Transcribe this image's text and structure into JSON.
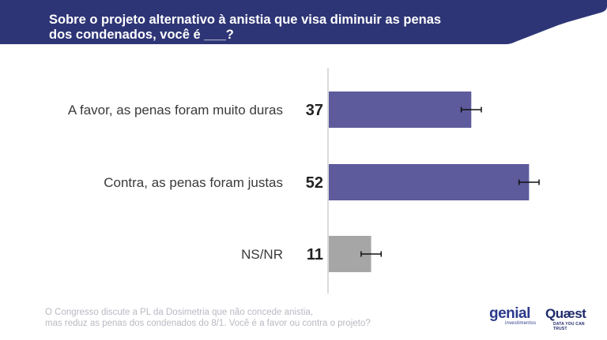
{
  "header": {
    "title_line1": "Sobre o projeto alternativo à anistia que visa diminuir as penas",
    "title_line2": "dos condenados, você é ___?"
  },
  "colors": {
    "header_band": "#2e3576",
    "bar_primary": "#5d5b9c",
    "bar_neutral": "#a6a6a6",
    "axis_line": "#cfcfcf"
  },
  "chart_data": {
    "type": "bar",
    "orientation": "horizontal",
    "categories": [
      "A favor, as penas foram muito duras",
      "Contra, as penas foram justas",
      "NS/NR"
    ],
    "values": [
      37,
      52,
      11
    ],
    "value_labels": [
      "37",
      "52",
      "11"
    ],
    "error_margin": 2,
    "bar_colors": [
      "#5d5b9c",
      "#5d5b9c",
      "#a6a6a6"
    ],
    "xlim": [
      0,
      55
    ],
    "grid": false,
    "title": "",
    "xlabel": "",
    "ylabel": ""
  },
  "footer": {
    "note_line1": "O Congresso discute a PL da Dosimetria que não concede anistia,",
    "note_line2": "mas reduz as penas dos condenados do 8/1. Você é a favor ou contra o projeto?"
  },
  "logos": {
    "genial_word": "genial",
    "genial_sub": "investimentos",
    "genial_icon": "genial-logo-icon",
    "quaest_word": "Quæst",
    "quaest_sub": "DATA YOU CAN TRUST",
    "quaest_icon": "quaest-logo-icon"
  }
}
